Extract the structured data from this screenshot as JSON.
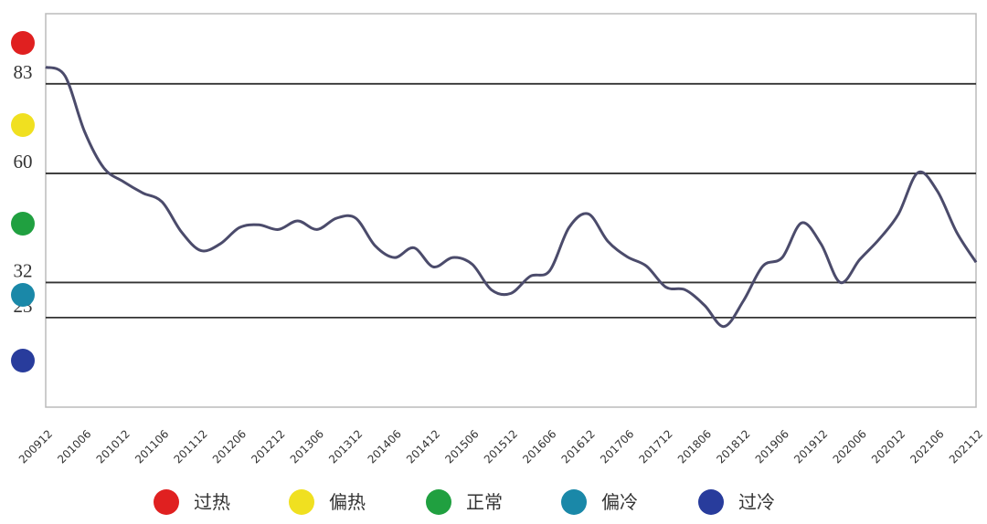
{
  "chart_data": {
    "type": "line",
    "categories": [
      "200912",
      null,
      "201006",
      null,
      "201012",
      null,
      "201106",
      null,
      "201112",
      null,
      "201206",
      null,
      "201212",
      null,
      "201306",
      null,
      "201312",
      null,
      "201406",
      null,
      "201412",
      null,
      "201506",
      null,
      "201512",
      null,
      "201606",
      null,
      "201612",
      null,
      "201706",
      null,
      "201712",
      null,
      "201806",
      null,
      "201812",
      null,
      "201906",
      null,
      "201912",
      null,
      "202006",
      null,
      "202012",
      null,
      "202106",
      null,
      "202112"
    ],
    "series": [
      {
        "color": "#4b4b6b",
        "values": [
          87.3,
          85,
          70.8,
          61.4,
          57.9,
          55,
          52.7,
          45,
          40.2,
          41.9,
          46.1,
          46.8,
          45.6,
          47.8,
          45.6,
          48.5,
          48.5,
          41.4,
          38.4,
          40.9,
          36,
          38.4,
          36.7,
          30.1,
          29.2,
          33.6,
          35,
          46.1,
          49.6,
          42.6,
          38.6,
          36.2,
          30.8,
          30.1,
          26.1,
          20.7,
          27.3,
          36.2,
          38.4,
          47.3,
          41.9,
          32,
          37.9,
          43.1,
          49.6,
          60.2,
          55.5,
          44.9,
          37.2
        ]
      }
    ],
    "ylim": [
      0,
      101
    ],
    "yticks": [
      23,
      32,
      60,
      83
    ],
    "grid": true,
    "zones": [
      {
        "name": "过热",
        "color": "#e02020"
      },
      {
        "name": "偏热",
        "color": "#f0e020"
      },
      {
        "name": "正常",
        "color": "#20a040"
      },
      {
        "name": "偏冷",
        "color": "#1a88a8"
      },
      {
        "name": "过冷",
        "color": "#283c9c"
      }
    ]
  }
}
